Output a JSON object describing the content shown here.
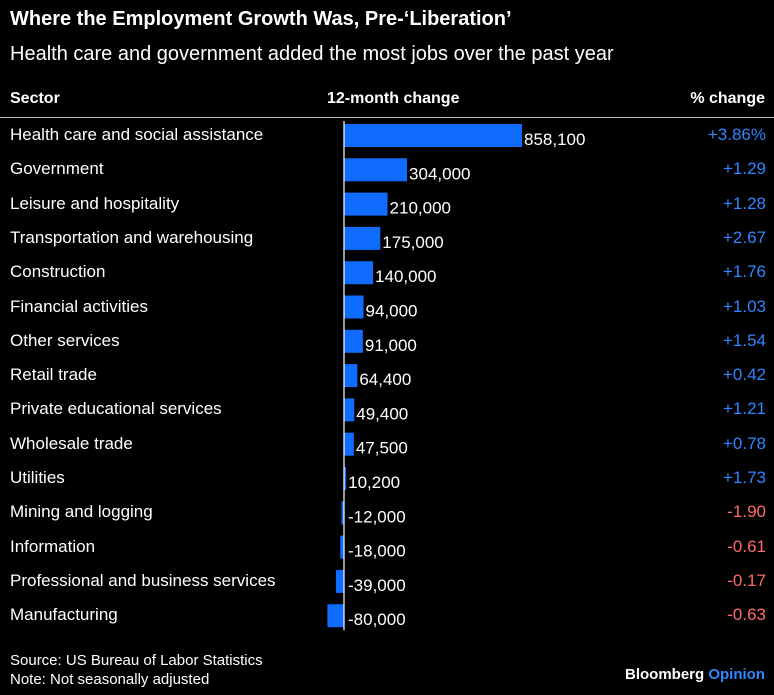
{
  "title": "Where the Employment Growth Was, Pre-‘Liberation’",
  "subtitle": "Health care and government added the most jobs over the past year",
  "headers": {
    "sector": "Sector",
    "change": "12-month change",
    "pct": "% change"
  },
  "chart_data": {
    "type": "bar",
    "orientation": "horizontal",
    "categories": [
      "Health care and social assistance",
      "Government",
      "Leisure and hospitality",
      "Transportation and warehousing",
      "Construction",
      "Financial activities",
      "Other services",
      "Retail trade",
      "Private educational services",
      "Wholesale trade",
      "Utilities",
      "Mining and logging",
      "Information",
      "Professional and business services",
      "Manufacturing"
    ],
    "values": [
      858100,
      304000,
      210000,
      175000,
      140000,
      94000,
      91000,
      64400,
      49400,
      47500,
      10200,
      -12000,
      -18000,
      -39000,
      -80000
    ],
    "value_labels": [
      "858,100",
      "304,000",
      "210,000",
      "175,000",
      "140,000",
      "94,000",
      "91,000",
      "64,400",
      "49,400",
      "47,500",
      "10,200",
      "-12,000",
      "-18,000",
      "-39,000",
      "-80,000"
    ],
    "pct_change": [
      "+3.86%",
      "+1.29",
      "+1.28",
      "+2.67",
      "+1.76",
      "+1.03",
      "+1.54",
      "+0.42",
      "+1.21",
      "+0.78",
      "+1.73",
      "-1.90",
      "-0.61",
      "-0.17",
      "-0.63"
    ],
    "colors": {
      "bar": "#0f6cff",
      "positive": "#2f86ff",
      "negative": "#ff6b6b",
      "axis": "#ffffff"
    }
  },
  "footer": {
    "source": "Source: US Bureau of Labor Statistics",
    "note": "Note: Not seasonally adjusted",
    "brand": "Bloomberg",
    "brand_suffix": "Opinion"
  }
}
